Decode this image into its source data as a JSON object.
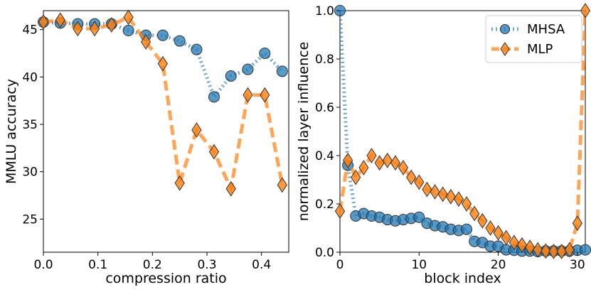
{
  "chart_data": [
    {
      "type": "line",
      "xlabel": "compression ratio",
      "ylabel": "MMLU accuracy",
      "xlim": [
        0.0,
        0.45
      ],
      "ylim": [
        21.5,
        47.0
      ],
      "xticks": [
        0.0,
        0.1,
        0.2,
        0.3,
        0.4
      ],
      "xtick_labels": [
        "0.0",
        "0.1",
        "0.2",
        "0.3",
        "0.4"
      ],
      "yticks": [
        25,
        30,
        35,
        40,
        45
      ],
      "ytick_labels": [
        "25",
        "30",
        "35",
        "40",
        "45"
      ],
      "series": [
        {
          "name": "MHSA",
          "color": "#1f77b4",
          "marker": "circle",
          "linestyle": "dotted",
          "x": [
            0.0,
            0.031,
            0.063,
            0.094,
            0.125,
            0.156,
            0.188,
            0.219,
            0.25,
            0.281,
            0.313,
            0.344,
            0.375,
            0.406,
            0.438
          ],
          "y": [
            45.8,
            45.7,
            45.6,
            45.6,
            45.6,
            44.9,
            44.4,
            44.4,
            43.8,
            42.9,
            37.9,
            40.1,
            40.8,
            42.5,
            40.6
          ]
        },
        {
          "name": "MLP",
          "color": "#ff7f0e",
          "marker": "diamond",
          "linestyle": "dashed",
          "x": [
            0.0,
            0.031,
            0.063,
            0.094,
            0.125,
            0.156,
            0.188,
            0.219,
            0.25,
            0.281,
            0.313,
            0.344,
            0.375,
            0.406,
            0.438
          ],
          "y": [
            45.8,
            46.0,
            45.1,
            45.1,
            45.5,
            46.3,
            43.7,
            41.4,
            28.8,
            34.4,
            32.1,
            28.2,
            38.1,
            38.1,
            28.6
          ]
        }
      ]
    },
    {
      "type": "line",
      "xlabel": "block index",
      "ylabel": "normalized layer influence",
      "xlim": [
        0,
        31
      ],
      "ylim": [
        0.0,
        1.0
      ],
      "xticks": [
        0,
        10,
        20,
        30
      ],
      "xtick_labels": [
        "0",
        "10",
        "20",
        "30"
      ],
      "yticks": [
        0.0,
        0.2,
        0.4,
        0.6,
        0.8,
        1.0
      ],
      "ytick_labels": [
        "0.0",
        "0.2",
        "0.4",
        "0.6",
        "0.8",
        "1.0"
      ],
      "legend": {
        "position": "top-right",
        "entries": [
          "MHSA",
          "MLP"
        ]
      },
      "series": [
        {
          "name": "MHSA",
          "color": "#1f77b4",
          "marker": "circle",
          "linestyle": "dotted",
          "x": [
            0,
            1,
            2,
            3,
            4,
            5,
            6,
            7,
            8,
            9,
            10,
            11,
            12,
            13,
            14,
            15,
            16,
            17,
            18,
            19,
            20,
            21,
            22,
            23,
            24,
            25,
            26,
            27,
            28,
            29,
            30,
            31
          ],
          "y": [
            1.0,
            0.36,
            0.15,
            0.16,
            0.15,
            0.145,
            0.135,
            0.13,
            0.135,
            0.14,
            0.145,
            0.12,
            0.11,
            0.105,
            0.095,
            0.09,
            0.095,
            0.045,
            0.04,
            0.025,
            0.025,
            0.01,
            0.008,
            0.005,
            0.005,
            0.003,
            0.005,
            0.005,
            0.005,
            0.005,
            0.008,
            0.01
          ]
        },
        {
          "name": "MLP",
          "color": "#ff7f0e",
          "marker": "diamond",
          "linestyle": "dashed",
          "x": [
            0,
            1,
            2,
            3,
            4,
            5,
            6,
            7,
            8,
            9,
            10,
            11,
            12,
            13,
            14,
            15,
            16,
            17,
            18,
            19,
            20,
            21,
            22,
            23,
            24,
            25,
            26,
            27,
            28,
            29,
            30,
            31
          ],
          "y": [
            0.17,
            0.38,
            0.31,
            0.35,
            0.4,
            0.37,
            0.38,
            0.37,
            0.35,
            0.31,
            0.29,
            0.26,
            0.25,
            0.24,
            0.23,
            0.22,
            0.2,
            0.16,
            0.13,
            0.1,
            0.08,
            0.06,
            0.04,
            0.03,
            0.02,
            0.01,
            0.005,
            0.003,
            0.003,
            0.01,
            0.12,
            1.0
          ]
        }
      ]
    }
  ]
}
